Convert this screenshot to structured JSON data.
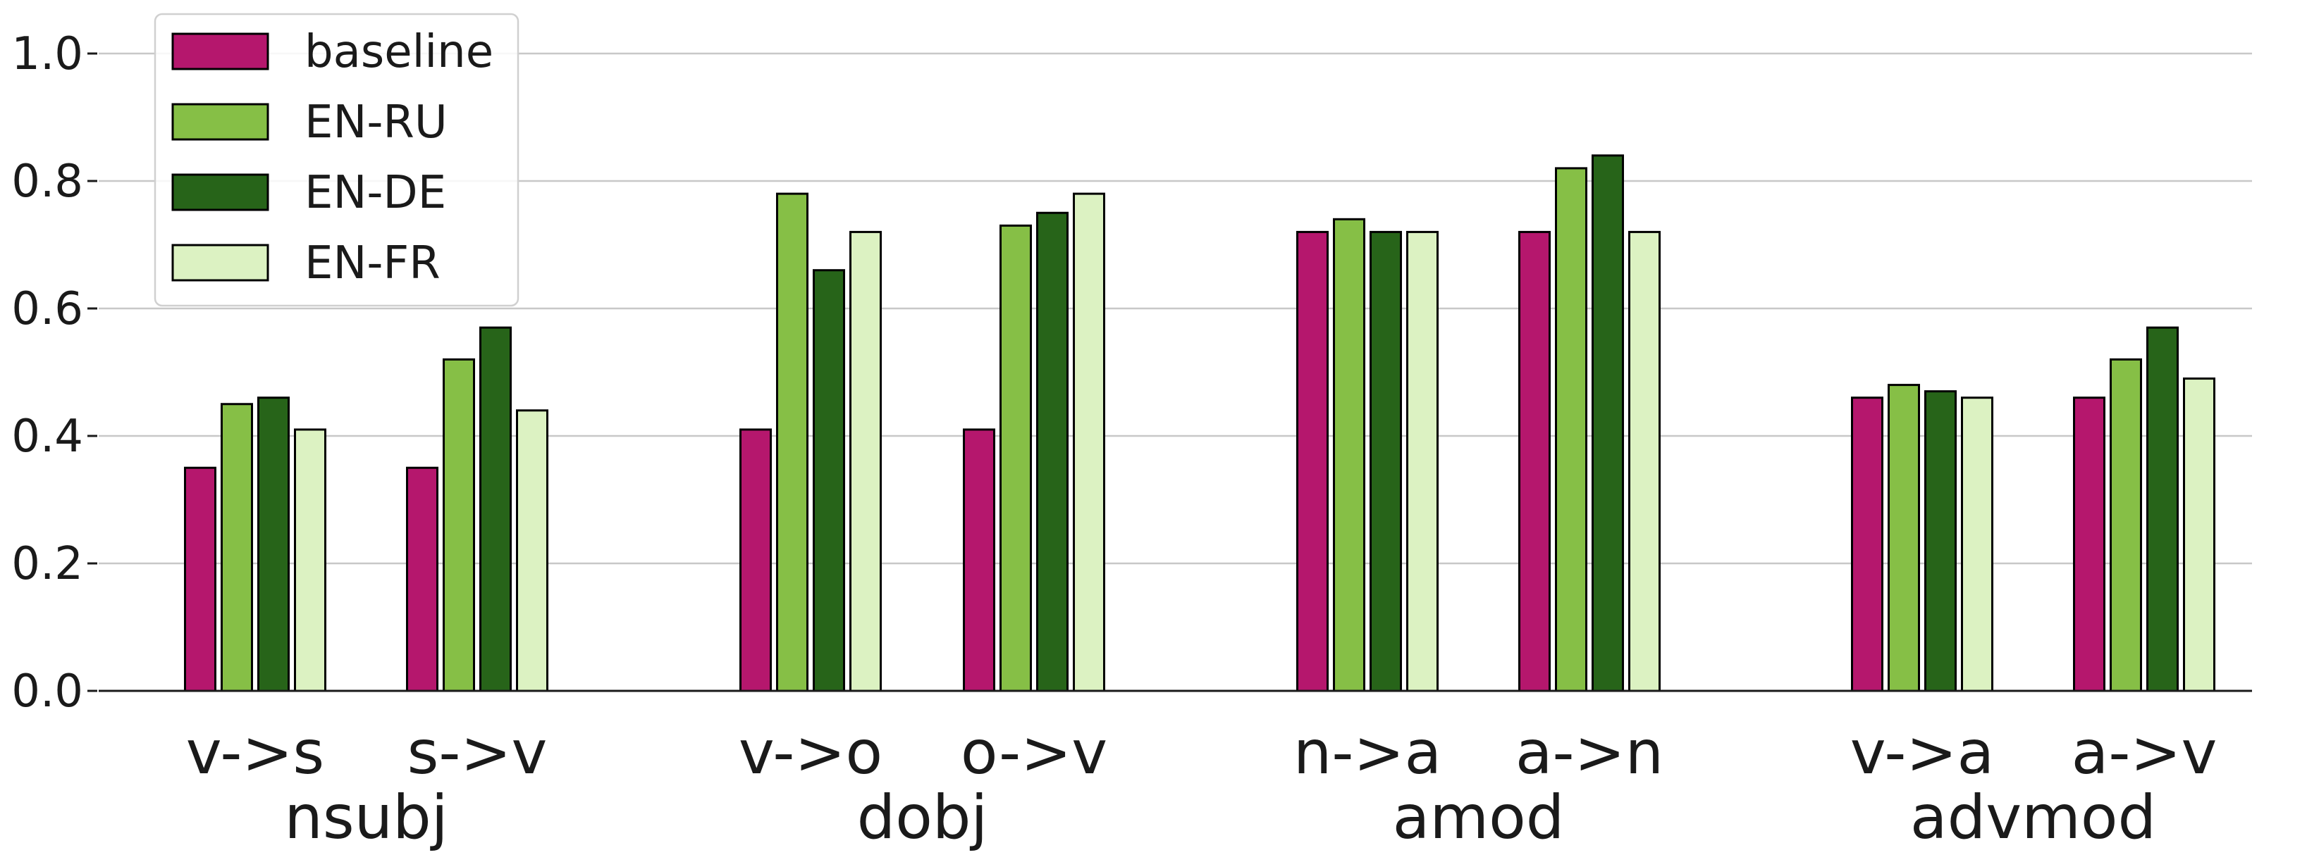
{
  "chart_data": {
    "type": "bar",
    "title": "",
    "xlabel": "",
    "ylabel": "",
    "ylim": [
      0,
      1.05
    ],
    "yticks": [
      "0.0",
      "0.2",
      "0.4",
      "0.6",
      "0.8",
      "1.0"
    ],
    "grid": "horizontal",
    "legend_position": "top-left",
    "categories": [
      "v->s",
      "s->v",
      "v->o",
      "o->v",
      "n->a",
      "a->n",
      "v->a",
      "a->v"
    ],
    "groups": [
      {
        "label": "nsubj",
        "categories": [
          "v->s",
          "s->v"
        ]
      },
      {
        "label": "dobj",
        "categories": [
          "v->o",
          "o->v"
        ]
      },
      {
        "label": "amod",
        "categories": [
          "n->a",
          "a->n"
        ]
      },
      {
        "label": "advmod",
        "categories": [
          "v->a",
          "a->v"
        ]
      }
    ],
    "series": [
      {
        "name": "baseline",
        "color": "#b5176d",
        "values": [
          0.35,
          0.35,
          0.41,
          0.41,
          0.72,
          0.72,
          0.46,
          0.46
        ]
      },
      {
        "name": "EN-RU",
        "color": "#86bf46",
        "values": [
          0.45,
          0.52,
          0.78,
          0.73,
          0.74,
          0.82,
          0.48,
          0.52
        ]
      },
      {
        "name": "EN-DE",
        "color": "#276419",
        "values": [
          0.46,
          0.57,
          0.66,
          0.75,
          0.72,
          0.84,
          0.47,
          0.57
        ]
      },
      {
        "name": "EN-FR",
        "color": "#dcf2c2",
        "values": [
          0.41,
          0.44,
          0.72,
          0.78,
          0.72,
          0.72,
          0.46,
          0.49
        ]
      }
    ]
  }
}
